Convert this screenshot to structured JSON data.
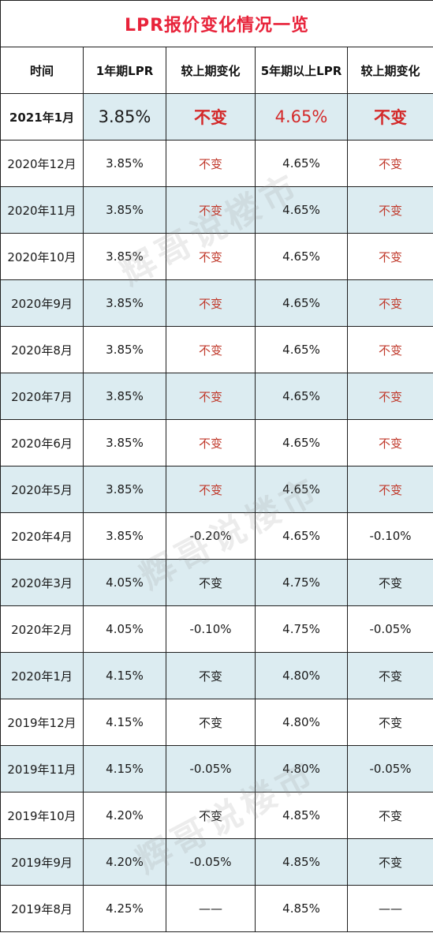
{
  "title": "LPR报价变化情况一览",
  "headers": [
    "时间",
    "1年期LPR",
    "较上期变化",
    "5年期以上LPR",
    "较上期变化"
  ],
  "watermark": "辉哥说楼市",
  "colors": {
    "title": "#e8233a",
    "change_red": "#c0392b",
    "shade": "#dcecf1"
  },
  "rows": [
    {
      "date": "2021年1月",
      "lpr1": "3.85%",
      "chg1": "不变",
      "lpr5": "4.65%",
      "chg5": "不变"
    },
    {
      "date": "2020年12月",
      "lpr1": "3.85%",
      "chg1": "不变",
      "lpr5": "4.65%",
      "chg5": "不变"
    },
    {
      "date": "2020年11月",
      "lpr1": "3.85%",
      "chg1": "不变",
      "lpr5": "4.65%",
      "chg5": "不变"
    },
    {
      "date": "2020年10月",
      "lpr1": "3.85%",
      "chg1": "不变",
      "lpr5": "4.65%",
      "chg5": "不变"
    },
    {
      "date": "2020年9月",
      "lpr1": "3.85%",
      "chg1": "不变",
      "lpr5": "4.65%",
      "chg5": "不变"
    },
    {
      "date": "2020年8月",
      "lpr1": "3.85%",
      "chg1": "不变",
      "lpr5": "4.65%",
      "chg5": "不变"
    },
    {
      "date": "2020年7月",
      "lpr1": "3.85%",
      "chg1": "不变",
      "lpr5": "4.65%",
      "chg5": "不变"
    },
    {
      "date": "2020年6月",
      "lpr1": "3.85%",
      "chg1": "不变",
      "lpr5": "4.65%",
      "chg5": "不变"
    },
    {
      "date": "2020年5月",
      "lpr1": "3.85%",
      "chg1": "不变",
      "lpr5": "4.65%",
      "chg5": "不变"
    },
    {
      "date": "2020年4月",
      "lpr1": "3.85%",
      "chg1": "-0.20%",
      "lpr5": "4.65%",
      "chg5": "-0.10%"
    },
    {
      "date": "2020年3月",
      "lpr1": "4.05%",
      "chg1": "不变",
      "lpr5": "4.75%",
      "chg5": "不变"
    },
    {
      "date": "2020年2月",
      "lpr1": "4.05%",
      "chg1": "-0.10%",
      "lpr5": "4.75%",
      "chg5": "-0.05%"
    },
    {
      "date": "2020年1月",
      "lpr1": "4.15%",
      "chg1": "不变",
      "lpr5": "4.80%",
      "chg5": "不变"
    },
    {
      "date": "2019年12月",
      "lpr1": "4.15%",
      "chg1": "不变",
      "lpr5": "4.80%",
      "chg5": "不变"
    },
    {
      "date": "2019年11月",
      "lpr1": "4.15%",
      "chg1": "-0.05%",
      "lpr5": "4.80%",
      "chg5": "-0.05%"
    },
    {
      "date": "2019年10月",
      "lpr1": "4.20%",
      "chg1": "不变",
      "lpr5": "4.85%",
      "chg5": "不变"
    },
    {
      "date": "2019年9月",
      "lpr1": "4.20%",
      "chg1": "-0.05%",
      "lpr5": "4.85%",
      "chg5": "不变"
    },
    {
      "date": "2019年8月",
      "lpr1": "4.25%",
      "chg1": "——",
      "lpr5": "4.85%",
      "chg5": "——"
    }
  ]
}
